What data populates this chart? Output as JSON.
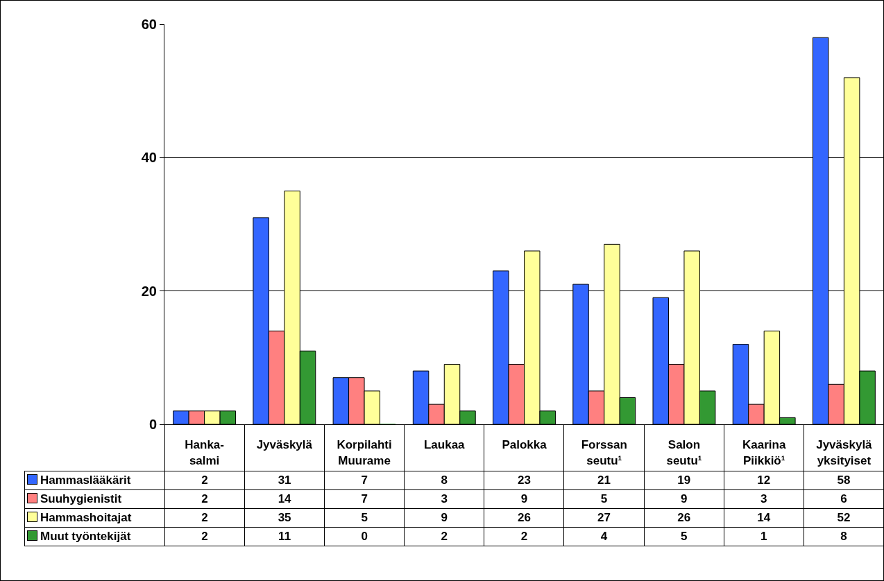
{
  "chart_data": {
    "type": "bar",
    "categories": [
      "Hanka-\nsalmi",
      "Jyväskylä",
      "Korpilahti\nMuurame",
      "Laukaa",
      "Palokka",
      "Forssan\nseutu¹",
      "Salon\nseutu¹",
      "Kaarina\nPiikkiö¹",
      "Jyväskylä\nyksityiset"
    ],
    "series": [
      {
        "name": "Hammaslääkärit",
        "color": "#3366ff",
        "values": [
          2,
          31,
          7,
          8,
          23,
          21,
          19,
          12,
          58
        ]
      },
      {
        "name": "Suuhygienistit",
        "color": "#ff8080",
        "values": [
          2,
          14,
          7,
          3,
          9,
          5,
          9,
          3,
          6
        ]
      },
      {
        "name": "Hammashoitajat",
        "color": "#ffff99",
        "values": [
          2,
          35,
          5,
          9,
          26,
          27,
          26,
          14,
          52
        ]
      },
      {
        "name": "Muut työntekijät",
        "color": "#339933",
        "values": [
          2,
          11,
          0,
          2,
          2,
          4,
          5,
          1,
          8
        ]
      }
    ],
    "ylim": [
      0,
      60
    ],
    "yticks": [
      0,
      20,
      40,
      60
    ],
    "grid": "y",
    "legend": "bottom left",
    "data_labels": true
  }
}
